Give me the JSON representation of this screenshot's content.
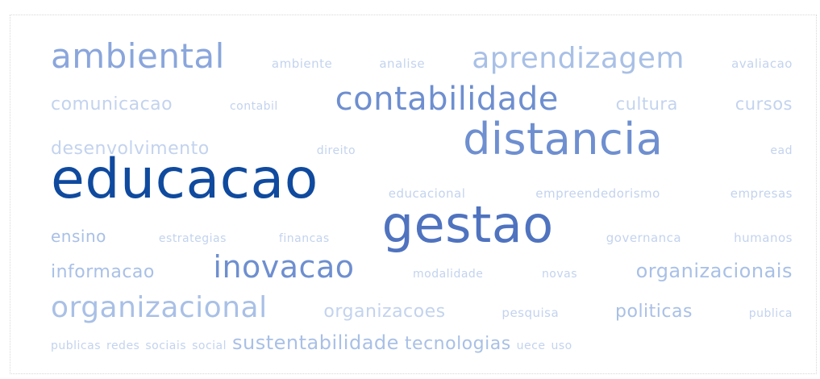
{
  "lines": [
    [
      "ambiental",
      "ambiente",
      "analise",
      "aprendizagem",
      "avaliacao"
    ],
    [
      "comunicacao",
      "contabil",
      "contabilidade",
      "cultura",
      "cursos"
    ],
    [
      "desenvolvimento",
      "direito",
      "distancia",
      "ead"
    ],
    [
      "educacao",
      "educacional",
      "empreendedorismo",
      "empresas"
    ],
    [
      "ensino",
      "estrategias",
      "financas",
      "gestao",
      "governanca",
      "humanos"
    ],
    [
      "informacao",
      "inovacao",
      "modalidade",
      "novas",
      "organizacionais"
    ],
    [
      "organizacional",
      "organizacoes",
      "pesquisa",
      "politicas",
      "publica"
    ],
    [
      "publicas",
      "redes",
      "sociais",
      "social",
      "sustentabilidade",
      "tecnologias",
      "uece",
      "uso"
    ]
  ]
}
